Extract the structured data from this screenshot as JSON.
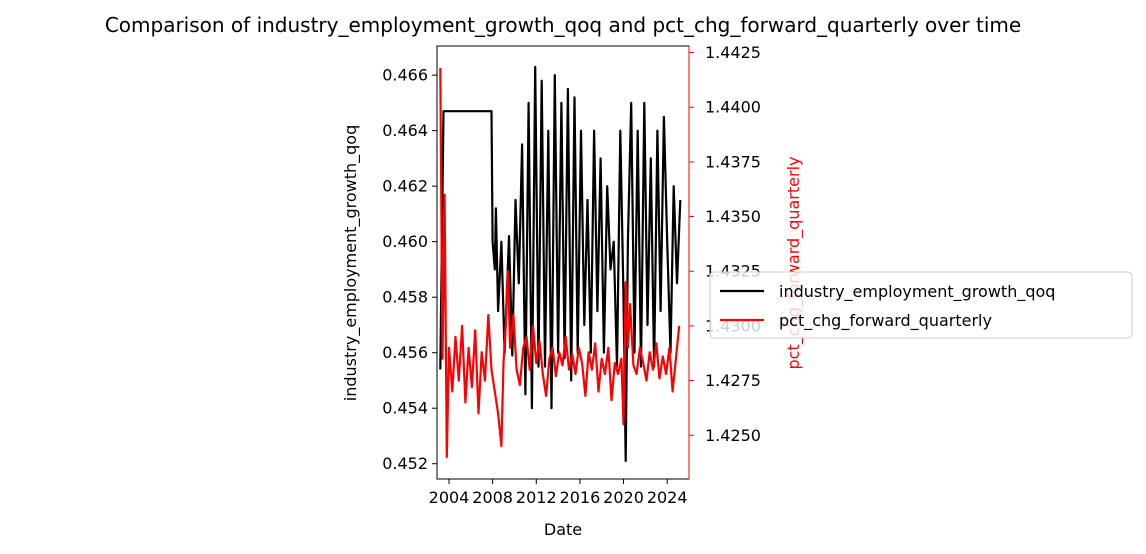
{
  "chart_data": {
    "type": "line",
    "title": "Comparison of industry_employment_growth_qoq and pct_chg_forward_quarterly over time",
    "xlabel": "Date",
    "x_ticks": [
      "2004",
      "2008",
      "2012",
      "2016",
      "2020",
      "2024"
    ],
    "xlim": [
      2002.9,
      2026.0
    ],
    "left_axis": {
      "label": "industry_employment_growth_qoq",
      "color": "#000000",
      "ylim": [
        0.45145,
        0.46705
      ],
      "ticks": [
        "0.452",
        "0.454",
        "0.456",
        "0.458",
        "0.460",
        "0.462",
        "0.464",
        "0.466"
      ]
    },
    "right_axis": {
      "label": "pct_chg_forward_quarterly",
      "color": "#ff0000",
      "ylim": [
        1.423,
        1.4428
      ],
      "ticks": [
        "1.4250",
        "1.4275",
        "1.4300",
        "1.4325",
        "1.4350",
        "1.4375",
        "1.4400",
        "1.4425"
      ]
    },
    "legend": {
      "placement": "right, outside",
      "entries": [
        "industry_employment_growth_qoq",
        "pct_chg_forward_quarterly"
      ]
    },
    "series": [
      {
        "name": "industry_employment_growth_qoq",
        "axis": "left",
        "color": "#000000",
        "x": [
          2003.2,
          2003.5,
          2003.9,
          2007.9,
          2008.0,
          2008.2,
          2008.3,
          2008.5,
          2008.8,
          2009.1,
          2009.5,
          2009.8,
          2010.1,
          2010.4,
          2010.7,
          2011.0,
          2011.3,
          2011.6,
          2011.9,
          2012.2,
          2012.5,
          2012.8,
          2013.1,
          2013.4,
          2013.7,
          2014.0,
          2014.3,
          2014.6,
          2014.9,
          2015.2,
          2015.5,
          2015.8,
          2016.1,
          2016.4,
          2016.7,
          2017.0,
          2017.3,
          2017.6,
          2017.9,
          2018.2,
          2018.5,
          2018.8,
          2019.1,
          2019.4,
          2019.7,
          2020.0,
          2020.2,
          2020.4,
          2020.7,
          2021.0,
          2021.3,
          2021.6,
          2021.9,
          2022.2,
          2022.5,
          2022.8,
          2023.1,
          2023.4,
          2023.7,
          2024.0,
          2024.3,
          2024.6,
          2024.9,
          2025.2
        ],
        "y": [
          0.4554,
          0.4647,
          0.4647,
          0.4647,
          0.46,
          0.459,
          0.4612,
          0.4575,
          0.46,
          0.456,
          0.4602,
          0.4559,
          0.4615,
          0.4585,
          0.4635,
          0.4545,
          0.465,
          0.454,
          0.4663,
          0.4555,
          0.4658,
          0.4555,
          0.464,
          0.454,
          0.466,
          0.456,
          0.465,
          0.4558,
          0.4655,
          0.455,
          0.4652,
          0.456,
          0.464,
          0.457,
          0.4615,
          0.456,
          0.464,
          0.4575,
          0.463,
          0.456,
          0.462,
          0.459,
          0.46,
          0.4555,
          0.464,
          0.458,
          0.4521,
          0.46,
          0.465,
          0.456,
          0.464,
          0.4555,
          0.465,
          0.457,
          0.463,
          0.4555,
          0.464,
          0.4575,
          0.4645,
          0.46,
          0.456,
          0.462,
          0.4585,
          0.4615
        ]
      },
      {
        "name": "pct_chg_forward_quarterly",
        "axis": "right",
        "color": "#ff0000",
        "x": [
          2003.2,
          2003.4,
          2003.6,
          2003.8,
          2004.0,
          2004.3,
          2004.6,
          2004.9,
          2005.2,
          2005.5,
          2005.8,
          2006.1,
          2006.4,
          2006.7,
          2007.0,
          2007.3,
          2007.6,
          2007.9,
          2008.2,
          2008.5,
          2008.8,
          2009.0,
          2009.2,
          2009.4,
          2009.6,
          2009.9,
          2010.2,
          2010.5,
          2010.8,
          2011.1,
          2011.4,
          2011.7,
          2012.0,
          2012.3,
          2012.6,
          2012.9,
          2013.2,
          2013.5,
          2013.8,
          2014.1,
          2014.4,
          2014.7,
          2015.0,
          2015.3,
          2015.6,
          2015.9,
          2016.2,
          2016.5,
          2016.8,
          2017.1,
          2017.4,
          2017.7,
          2018.0,
          2018.3,
          2018.6,
          2018.9,
          2019.2,
          2019.5,
          2019.8,
          2020.0,
          2020.2,
          2020.4,
          2020.6,
          2020.9,
          2021.2,
          2021.5,
          2021.8,
          2022.1,
          2022.4,
          2022.7,
          2023.0,
          2023.3,
          2023.6,
          2023.9,
          2024.2,
          2024.5,
          2024.8,
          2025.1
        ],
        "y": [
          1.4418,
          1.4285,
          1.436,
          1.424,
          1.429,
          1.427,
          1.4295,
          1.4275,
          1.43,
          1.4265,
          1.429,
          1.4272,
          1.4298,
          1.426,
          1.4288,
          1.4275,
          1.4305,
          1.428,
          1.427,
          1.426,
          1.4245,
          1.4283,
          1.43,
          1.4325,
          1.429,
          1.4305,
          1.428,
          1.4273,
          1.429,
          1.4295,
          1.428,
          1.43,
          1.4283,
          1.4293,
          1.4278,
          1.4268,
          1.4285,
          1.429,
          1.4277,
          1.4288,
          1.4282,
          1.4295,
          1.428,
          1.4287,
          1.4278,
          1.429,
          1.4283,
          1.4268,
          1.4288,
          1.428,
          1.4292,
          1.427,
          1.4285,
          1.4278,
          1.429,
          1.4266,
          1.4283,
          1.4278,
          1.4285,
          1.4255,
          1.432,
          1.429,
          1.431,
          1.4282,
          1.4278,
          1.429,
          1.4283,
          1.4275,
          1.4288,
          1.428,
          1.4292,
          1.4276,
          1.4286,
          1.4278,
          1.429,
          1.427,
          1.4285,
          1.43
        ]
      }
    ]
  }
}
